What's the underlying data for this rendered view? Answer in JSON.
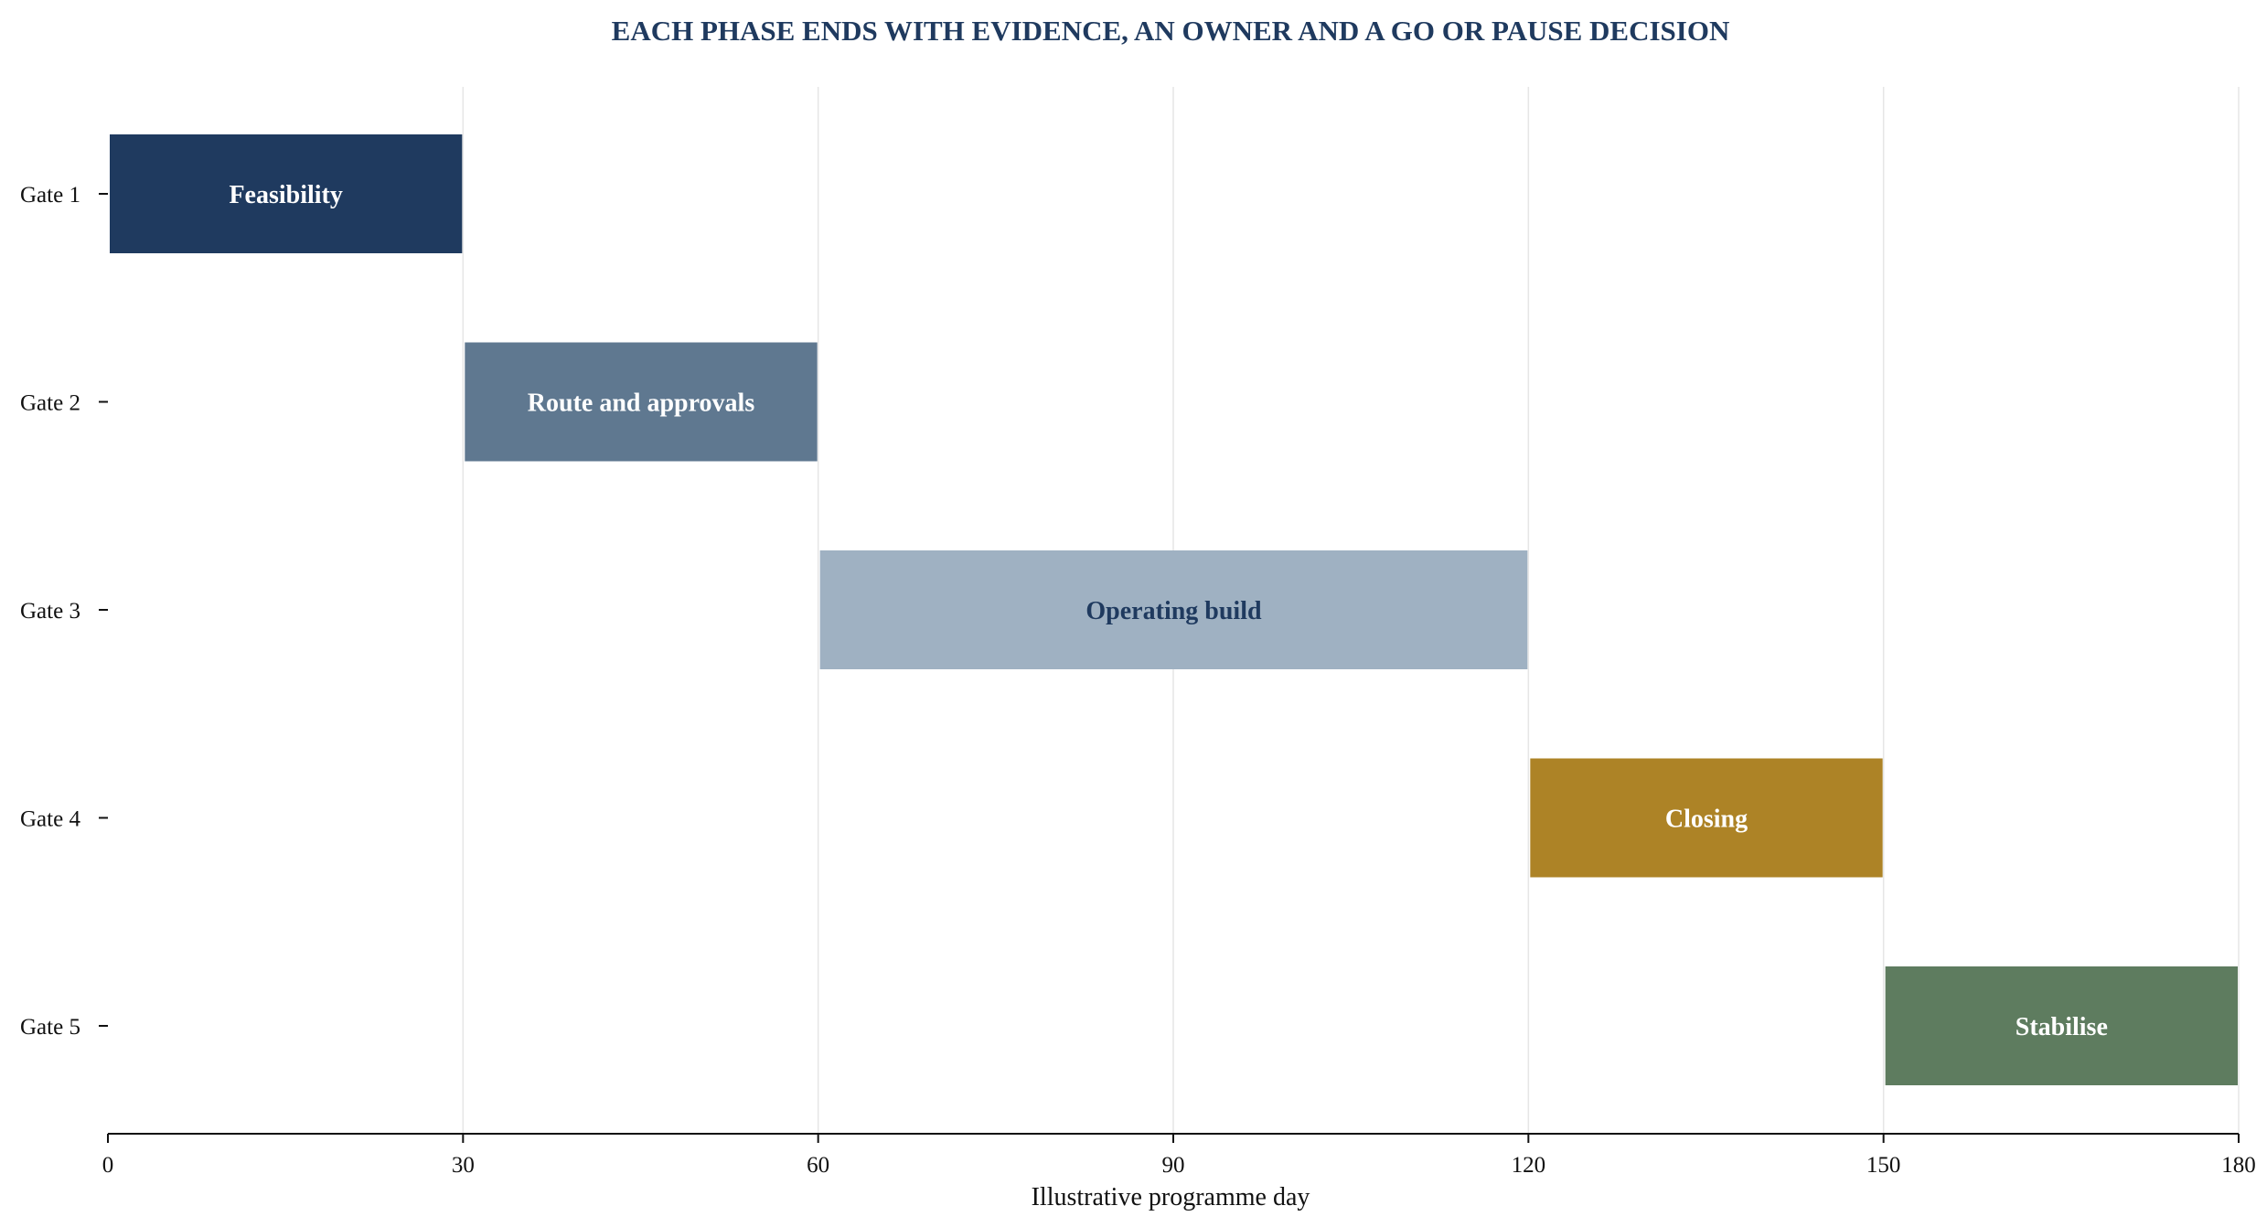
{
  "chart_data": {
    "type": "bar",
    "orientation": "horizontal",
    "title": "EACH PHASE ENDS WITH EVIDENCE, AN OWNER AND A GO OR PAUSE DECISION",
    "xlabel": "Illustrative programme day",
    "ylabel": "",
    "xlim": [
      0,
      180
    ],
    "x_ticks": [
      0,
      30,
      60,
      90,
      120,
      150,
      180
    ],
    "grid": "vertical",
    "categories": [
      "Gate 1",
      "Gate 2",
      "Gate 3",
      "Gate 4",
      "Gate 5"
    ],
    "phases": [
      {
        "gate": "Gate 1",
        "label": "Feasibility",
        "start": 0,
        "end": 30,
        "color": "#1f3a5f",
        "text_color": "#ffffff"
      },
      {
        "gate": "Gate 2",
        "label": "Route and approvals",
        "start": 30,
        "end": 60,
        "color": "#5f7890",
        "text_color": "#ffffff"
      },
      {
        "gate": "Gate 3",
        "label": "Operating build",
        "start": 60,
        "end": 120,
        "color": "#9fb1c2",
        "text_color": "#1f3a5f"
      },
      {
        "gate": "Gate 4",
        "label": "Closing",
        "start": 120,
        "end": 150,
        "color": "#ad8326",
        "text_color": "#ffffff"
      },
      {
        "gate": "Gate 5",
        "label": "Stabilise",
        "start": 150,
        "end": 180,
        "color": "#5e7c5f",
        "text_color": "#ffffff"
      }
    ]
  }
}
